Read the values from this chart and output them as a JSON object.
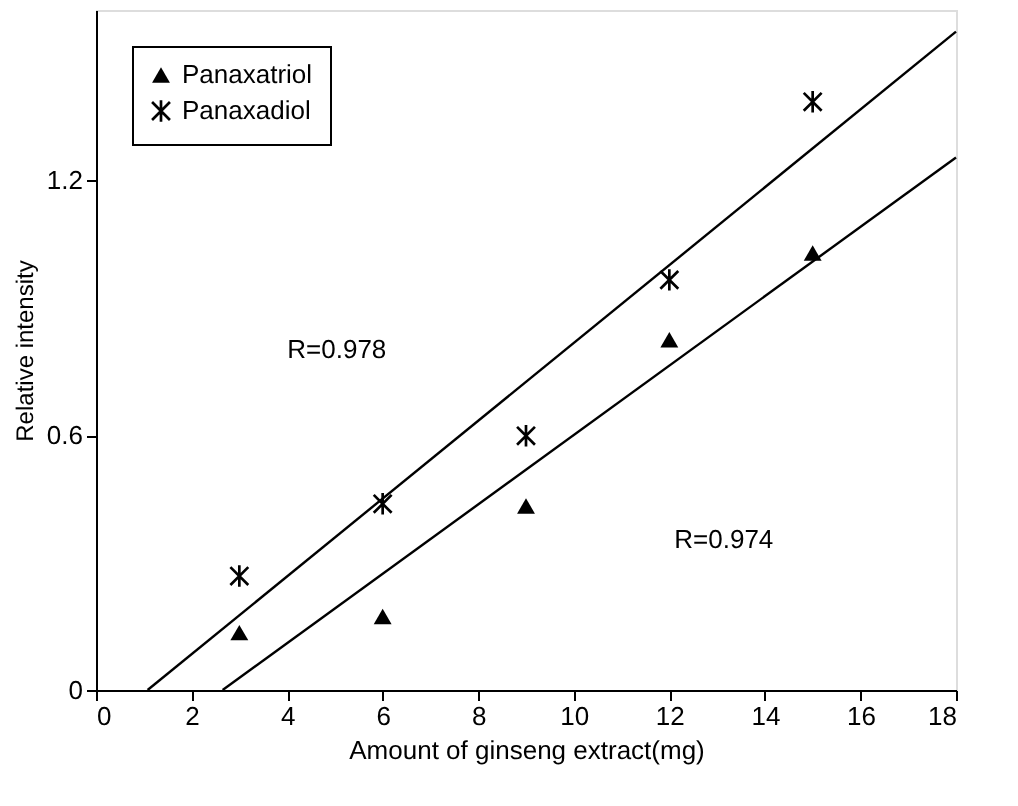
{
  "chart_data": {
    "type": "scatter",
    "xlabel": "Amount of ginseng extract(mg)",
    "ylabel": "Relative intensity",
    "xlim": [
      0,
      18
    ],
    "ylim": [
      0,
      1.6
    ],
    "xticks": [
      0,
      2,
      4,
      6,
      8,
      10,
      12,
      14,
      16,
      18
    ],
    "yticks": [
      {
        "value": 0,
        "label": "0"
      },
      0.6,
      1.2
    ],
    "grid": false,
    "legend": "top left",
    "series": [
      {
        "name": "Panaxatriol",
        "marker": "triangle",
        "color": "#000000",
        "x": [
          3,
          6,
          9,
          12,
          15
        ],
        "values": [
          0.135,
          0.173,
          0.433,
          0.824,
          1.028
        ]
      },
      {
        "name": "Panaxadiol",
        "marker": "cross",
        "color": "#000000",
        "x": [
          3,
          6,
          9,
          12,
          15
        ],
        "values": [
          0.268,
          0.438,
          0.598,
          0.965,
          1.384
        ]
      },
      {
        "type": "line",
        "color": "#000000",
        "line_style": "solid",
        "x": [
          1.08,
          18
        ],
        "values": [
          0,
          1.549
        ]
      },
      {
        "type": "line",
        "color": "#000000",
        "line_style": "solid",
        "x": [
          2.65,
          18
        ],
        "values": [
          0,
          1.253
        ]
      }
    ],
    "annotations": [
      "R=0.978",
      "R=0.974"
    ]
  }
}
